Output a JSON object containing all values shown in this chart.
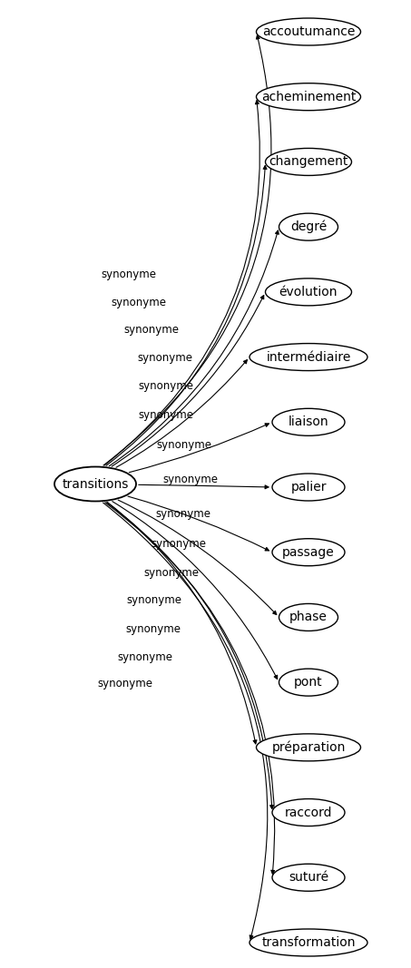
{
  "center_node": "transitions",
  "synonyms": [
    "accoutumance",
    "acheminement",
    "changement",
    "degré",
    "évolution",
    "intermédiaire",
    "liaison",
    "palier",
    "passage",
    "phase",
    "pont",
    "préparation",
    "raccord",
    "suturé",
    "transformation"
  ],
  "edge_label": "synonyme",
  "background_color": "#ffffff",
  "font_size_center": 10,
  "font_size_node": 10,
  "font_size_edge": 8.5
}
